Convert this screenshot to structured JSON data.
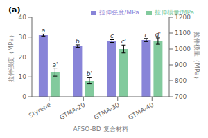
{
  "chart_data": {
    "type": "bar",
    "title": "(a)",
    "categories": [
      "Styrene",
      "GTMA-20",
      "GTMA-30",
      "GTMA-40"
    ],
    "xlabel": "AFSO-BD 复合材料",
    "ylabel": "拉伸强度（MPa）",
    "y2label": "拉伸模量（MPa）",
    "series": [
      {
        "name": "拉伸强度/MPa",
        "color": "#8884d8",
        "values": [
          31.0,
          25.5,
          28.0,
          28.5
        ],
        "errors": [
          0.5,
          0.6,
          0.7,
          0.8
        ],
        "annotations": [
          "a",
          "b",
          "c",
          "c"
        ]
      },
      {
        "name": "拉伸模量/MPa",
        "color": "#82ca9d",
        "axis": "y2",
        "values": [
          855,
          800,
          1000,
          1050
        ],
        "errors": [
          25,
          20,
          25,
          20
        ],
        "annotations": [
          "a'",
          "b'",
          "c'",
          "d'"
        ]
      }
    ],
    "ylim": [
      0,
      40
    ],
    "yticks": [
      0,
      10,
      20,
      30,
      40
    ],
    "y2lim": [
      700,
      1200
    ],
    "y2ticks": [
      700,
      800,
      900,
      1000,
      1100,
      1200
    ],
    "legend": "upper right",
    "grid": false
  }
}
